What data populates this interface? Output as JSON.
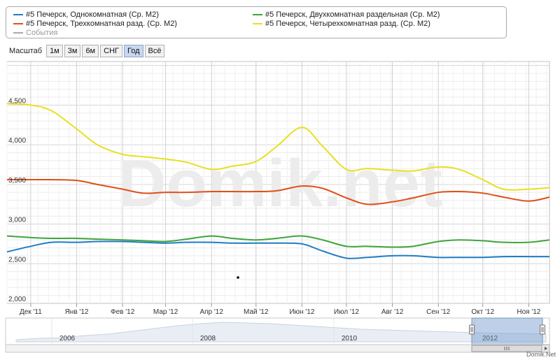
{
  "legend": {
    "items": [
      {
        "label": "#5 Печерск, Однокомнатная (Ср. М2)",
        "color": "#1f7cc4"
      },
      {
        "label": "#5 Печерск, Двухкомнатная раздельная (Ср. М2)",
        "color": "#3ea53a"
      },
      {
        "label": "#5 Печерск, Трехкомнатная разд. (Ср. М2)",
        "color": "#e04f1a"
      },
      {
        "label": "#5 Печерск, Четырехкомнатная разд. (Ср. М2)",
        "color": "#e8e020"
      }
    ],
    "events_label": "События"
  },
  "scale": {
    "label": "Масштаб",
    "buttons": [
      "1м",
      "3м",
      "6м",
      "СНГ",
      "Год",
      "Всё"
    ],
    "active": "Год"
  },
  "watermark": "Domik.net",
  "credit": "Domik.Net",
  "chart_data": {
    "type": "line",
    "x": [
      "2011-11-15",
      "2011-12-01",
      "2011-12-15",
      "2012-01-01",
      "2012-01-15",
      "2012-02-01",
      "2012-02-15",
      "2012-03-01",
      "2012-03-15",
      "2012-04-01",
      "2012-04-15",
      "2012-05-01",
      "2012-05-15",
      "2012-06-01",
      "2012-06-15",
      "2012-07-01",
      "2012-07-15",
      "2012-08-01",
      "2012-08-15",
      "2012-09-01",
      "2012-09-15",
      "2012-10-01",
      "2012-10-15",
      "2012-11-01",
      "2012-11-15"
    ],
    "x_ticks": [
      "Дек '11",
      "Янв '12",
      "Фев '12",
      "Мар '12",
      "Апр '12",
      "Май '12",
      "Июн '12",
      "Июл '12",
      "Авг '12",
      "Сен '12",
      "Окт '12",
      "Ноя '12"
    ],
    "y_ticks": [
      "2,000",
      "2,500",
      "3,000",
      "3,500",
      "4,000",
      "4,500"
    ],
    "ylim": [
      2000,
      5050
    ],
    "series": [
      {
        "values": [
          2650,
          2720,
          2770,
          2770,
          2780,
          2780,
          2770,
          2760,
          2770,
          2770,
          2760,
          2760,
          2760,
          2750,
          2660,
          2570,
          2580,
          2600,
          2600,
          2580,
          2580,
          2580,
          2590,
          2590,
          2590
        ]
      },
      {
        "values": [
          2850,
          2830,
          2820,
          2820,
          2810,
          2800,
          2790,
          2780,
          2810,
          2850,
          2820,
          2800,
          2820,
          2850,
          2800,
          2720,
          2720,
          2710,
          2720,
          2780,
          2800,
          2790,
          2770,
          2770,
          2800
        ]
      },
      {
        "values": [
          3560,
          3560,
          3560,
          3550,
          3500,
          3440,
          3390,
          3400,
          3400,
          3410,
          3410,
          3410,
          3420,
          3480,
          3450,
          3330,
          3250,
          3280,
          3330,
          3400,
          3410,
          3390,
          3340,
          3290,
          3340
        ]
      },
      {
        "values": [
          4520,
          4500,
          4430,
          4200,
          4000,
          3880,
          3850,
          3820,
          3780,
          3690,
          3730,
          3790,
          3980,
          4220,
          3980,
          3690,
          3700,
          3680,
          3670,
          3720,
          3690,
          3560,
          3440,
          3440,
          3460
        ]
      }
    ]
  },
  "navigator": {
    "labels": [
      "2006",
      "2008",
      "2010",
      "2012"
    ]
  }
}
